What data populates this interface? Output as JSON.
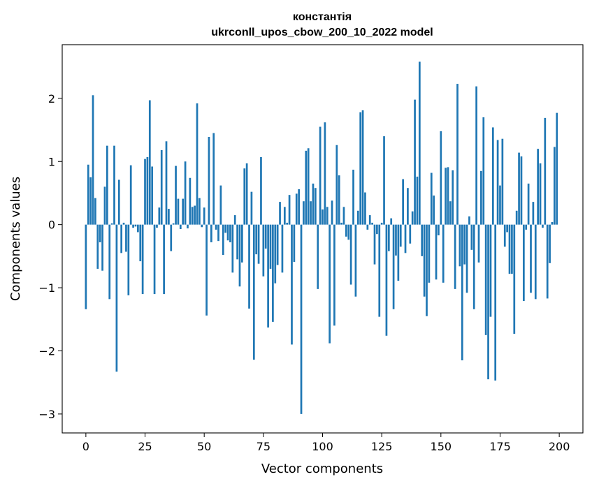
{
  "chart_data": {
    "type": "bar",
    "title": "константія",
    "subtitle": "ukrconll_upos_cbow_200_10_2022 model",
    "xlabel": "Vector components",
    "ylabel": "Components values",
    "xlim": [
      -10,
      210
    ],
    "ylim": [
      -3.3,
      2.85
    ],
    "xticks": [
      0,
      25,
      50,
      75,
      100,
      125,
      150,
      175,
      200
    ],
    "yticks": [
      -3,
      -2,
      -1,
      0,
      1,
      2
    ],
    "ytick_labels": [
      "−3",
      "−2",
      "−1",
      "0",
      "1",
      "2"
    ],
    "grid": false,
    "bar_color": "#1f77b4",
    "x": [
      0,
      1,
      2,
      3,
      4,
      5,
      6,
      7,
      8,
      9,
      10,
      11,
      12,
      13,
      14,
      15,
      16,
      17,
      18,
      19,
      20,
      21,
      22,
      23,
      24,
      25,
      26,
      27,
      28,
      29,
      30,
      31,
      32,
      33,
      34,
      35,
      36,
      37,
      38,
      39,
      40,
      41,
      42,
      43,
      44,
      45,
      46,
      47,
      48,
      49,
      50,
      51,
      52,
      53,
      54,
      55,
      56,
      57,
      58,
      59,
      60,
      61,
      62,
      63,
      64,
      65,
      66,
      67,
      68,
      69,
      70,
      71,
      72,
      73,
      74,
      75,
      76,
      77,
      78,
      79,
      80,
      81,
      82,
      83,
      84,
      85,
      86,
      87,
      88,
      89,
      90,
      91,
      92,
      93,
      94,
      95,
      96,
      97,
      98,
      99,
      100,
      101,
      102,
      103,
      104,
      105,
      106,
      107,
      108,
      109,
      110,
      111,
      112,
      113,
      114,
      115,
      116,
      117,
      118,
      119,
      120,
      121,
      122,
      123,
      124,
      125,
      126,
      127,
      128,
      129,
      130,
      131,
      132,
      133,
      134,
      135,
      136,
      137,
      138,
      139,
      140,
      141,
      142,
      143,
      144,
      145,
      146,
      147,
      148,
      149,
      150,
      151,
      152,
      153,
      154,
      155,
      156,
      157,
      158,
      159,
      160,
      161,
      162,
      163,
      164,
      165,
      166,
      167,
      168,
      169,
      170,
      171,
      172,
      173,
      174,
      175,
      176,
      177,
      178,
      179,
      180,
      181,
      182,
      183,
      184,
      185,
      186,
      187,
      188,
      189,
      190,
      191,
      192,
      193,
      194,
      195,
      196,
      197,
      198,
      199
    ],
    "values": [
      -1.34,
      0.95,
      0.75,
      2.05,
      0.42,
      -0.7,
      -0.28,
      -0.73,
      0.6,
      1.25,
      -1.18,
      0.02,
      1.25,
      -2.33,
      0.71,
      -0.45,
      0.03,
      -0.43,
      -1.12,
      0.94,
      -0.05,
      -0.03,
      -0.12,
      -0.58,
      -1.1,
      1.04,
      1.07,
      1.97,
      0.92,
      -1.1,
      -0.05,
      0.27,
      1.18,
      -1.1,
      1.32,
      0.25,
      -0.42,
      0.02,
      0.93,
      0.41,
      -0.07,
      0.41,
      1.0,
      -0.06,
      0.74,
      0.28,
      0.3,
      1.92,
      0.42,
      -0.04,
      0.27,
      -1.44,
      1.39,
      -0.28,
      1.45,
      -0.08,
      -0.26,
      0.62,
      -0.48,
      -0.13,
      -0.25,
      -0.28,
      -0.76,
      0.15,
      -0.55,
      -0.98,
      -0.6,
      0.89,
      0.97,
      -1.33,
      0.52,
      -2.14,
      -0.47,
      -0.62,
      1.07,
      -0.82,
      -0.38,
      -1.63,
      -0.7,
      -1.54,
      -0.93,
      -0.64,
      0.36,
      -0.76,
      0.28,
      0.03,
      0.47,
      -1.9,
      -0.59,
      0.49,
      0.56,
      -3.0,
      0.37,
      1.17,
      1.21,
      0.37,
      0.65,
      0.58,
      -1.02,
      1.55,
      0.24,
      1.62,
      0.28,
      -1.88,
      0.38,
      -1.6,
      1.26,
      0.78,
      0.03,
      0.28,
      -0.19,
      -0.24,
      -0.95,
      0.87,
      -1.14,
      0.22,
      1.78,
      1.81,
      0.51,
      -0.08,
      0.15,
      0.03,
      -0.63,
      -0.15,
      -1.46,
      0.03,
      1.4,
      -1.76,
      -0.42,
      0.1,
      -1.34,
      -0.49,
      -0.89,
      -0.35,
      0.72,
      -0.45,
      0.58,
      -0.3,
      0.21,
      1.98,
      0.76,
      2.58,
      -0.5,
      -1.14,
      -1.45,
      -0.92,
      0.82,
      0.46,
      -0.87,
      -0.17,
      1.48,
      -0.92,
      0.9,
      0.91,
      0.37,
      0.86,
      -1.02,
      2.23,
      -0.66,
      -2.15,
      -0.63,
      -1.08,
      0.13,
      -0.4,
      -1.34,
      2.19,
      -0.6,
      0.85,
      1.7,
      -1.75,
      -2.45,
      -1.46,
      1.54,
      -2.47,
      1.34,
      0.62,
      1.36,
      -0.35,
      -0.12,
      -0.78,
      -0.78,
      -1.73,
      0.22,
      1.14,
      1.08,
      -1.21,
      -0.08,
      0.65,
      -1.08,
      0.36,
      -1.18,
      1.2,
      0.97,
      -0.05,
      1.69,
      -1.17,
      -0.61,
      0.04,
      1.23,
      1.77
    ]
  }
}
